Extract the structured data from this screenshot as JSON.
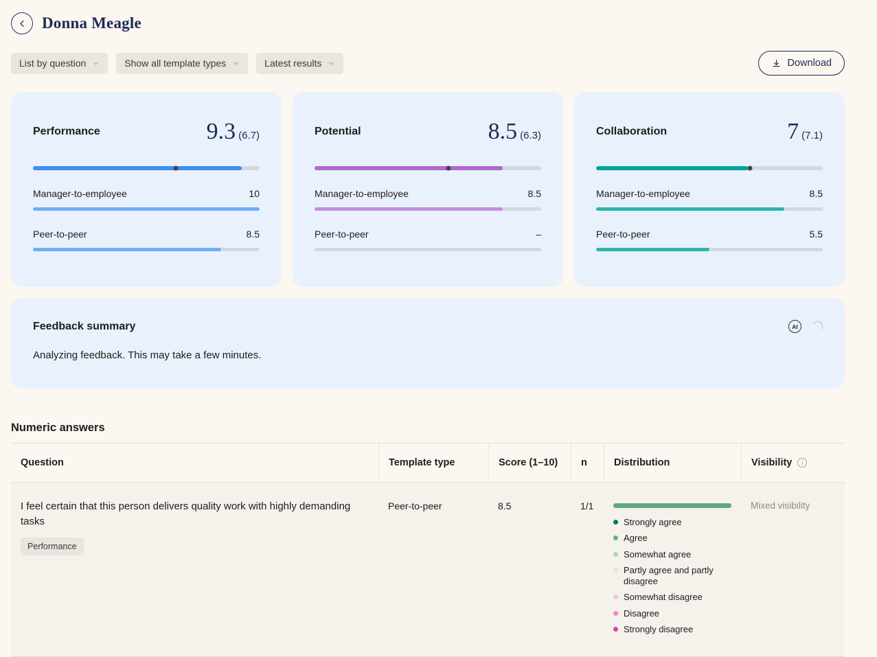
{
  "header": {
    "title": "Donna Meagle"
  },
  "filters": [
    {
      "label": "List by question"
    },
    {
      "label": "Show all template types"
    },
    {
      "label": "Latest results"
    }
  ],
  "download_label": "Download",
  "score_cards": [
    {
      "title": "Performance",
      "score": "9.3",
      "benchmark": "(6.7)",
      "color": "#3f8ef2",
      "sub_color": "#6fadf7",
      "bar_pct": 92,
      "marker_pct": 63,
      "rows": [
        {
          "label": "Manager-to-employee",
          "value": "10",
          "pct": 100
        },
        {
          "label": "Peer-to-peer",
          "value": "8.5",
          "pct": 83
        }
      ]
    },
    {
      "title": "Potential",
      "score": "8.5",
      "benchmark": "(6.3)",
      "color": "#b269cf",
      "sub_color": "#c38ede",
      "bar_pct": 83,
      "marker_pct": 59,
      "rows": [
        {
          "label": "Manager-to-employee",
          "value": "8.5",
          "pct": 83
        },
        {
          "label": "Peer-to-peer",
          "value": "–",
          "pct": 0
        }
      ]
    },
    {
      "title": "Collaboration",
      "score": "7",
      "benchmark": "(7.1)",
      "color": "#00a79b",
      "sub_color": "#2eb5a8",
      "bar_pct": 67,
      "marker_pct": 68,
      "rows": [
        {
          "label": "Manager-to-employee",
          "value": "8.5",
          "pct": 83
        },
        {
          "label": "Peer-to-peer",
          "value": "5.5",
          "pct": 50
        }
      ]
    }
  ],
  "feedback_summary": {
    "title": "Feedback summary",
    "ai_label": "AI",
    "body": "Analyzing feedback. This may take a few minutes."
  },
  "numeric_answers": {
    "title": "Numeric answers",
    "columns": [
      "Question",
      "Template type",
      "Score (1–10)",
      "n",
      "Distribution",
      "Visibility"
    ],
    "rows": [
      {
        "question": "I feel certain that this person delivers quality work with highly demanding tasks",
        "tag": "Performance",
        "template_type": "Peer-to-peer",
        "score": "8.5",
        "n": "1/1",
        "visibility": "Mixed visibility",
        "bar_color": "#63a881",
        "legend": [
          {
            "label": "Strongly agree",
            "color": "#00795c"
          },
          {
            "label": "Agree",
            "color": "#56b389"
          },
          {
            "label": "Somewhat agree",
            "color": "#a9d9b9"
          },
          {
            "label": "Partly agree and partly disagree",
            "color": "#e6e5e1"
          },
          {
            "label": "Somewhat disagree",
            "color": "#f6c3dd"
          },
          {
            "label": "Disagree",
            "color": "#f084cd"
          },
          {
            "label": "Strongly disagree",
            "color": "#e33bb8"
          }
        ]
      }
    ]
  }
}
